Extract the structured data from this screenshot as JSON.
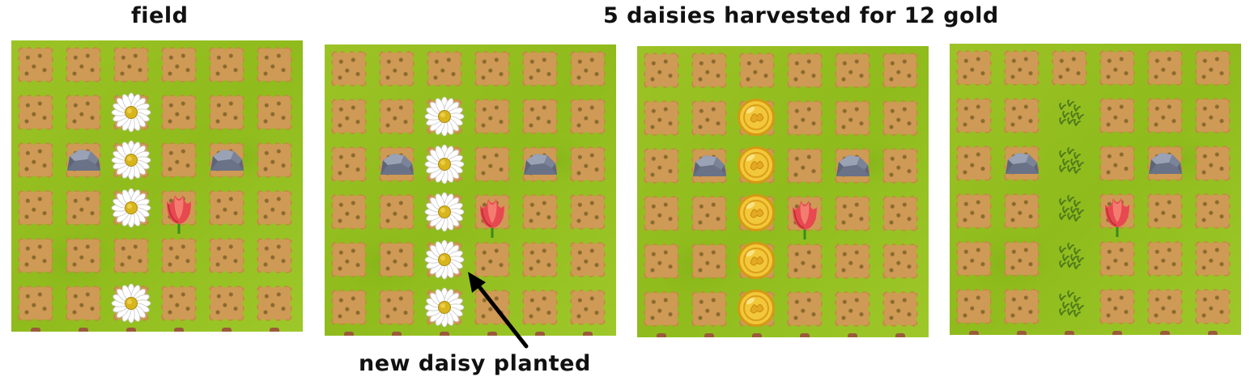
{
  "captions": {
    "field_title": "field",
    "harvest_title": "5 daisies harvested for 12 gold",
    "planted_note": "new daisy planted"
  },
  "grid": {
    "rows": 6,
    "cols": 6
  },
  "panels": [
    {
      "id": "panel-1",
      "items": [
        {
          "type": "daisy",
          "row": 1,
          "col": 2
        },
        {
          "type": "rock",
          "row": 2,
          "col": 1
        },
        {
          "type": "daisy",
          "row": 2,
          "col": 2
        },
        {
          "type": "rock",
          "row": 2,
          "col": 4
        },
        {
          "type": "daisy",
          "row": 3,
          "col": 2
        },
        {
          "type": "tulip",
          "row": 3,
          "col": 3
        },
        {
          "type": "daisy",
          "row": 5,
          "col": 2
        }
      ],
      "cleared": []
    },
    {
      "id": "panel-2",
      "items": [
        {
          "type": "daisy",
          "row": 1,
          "col": 2
        },
        {
          "type": "rock",
          "row": 2,
          "col": 1
        },
        {
          "type": "daisy",
          "row": 2,
          "col": 2
        },
        {
          "type": "rock",
          "row": 2,
          "col": 4
        },
        {
          "type": "daisy",
          "row": 3,
          "col": 2
        },
        {
          "type": "tulip",
          "row": 3,
          "col": 3
        },
        {
          "type": "daisy",
          "row": 4,
          "col": 2
        },
        {
          "type": "daisy",
          "row": 5,
          "col": 2
        }
      ],
      "cleared": []
    },
    {
      "id": "panel-3",
      "items": [
        {
          "type": "coin",
          "row": 1,
          "col": 2
        },
        {
          "type": "rock",
          "row": 2,
          "col": 1
        },
        {
          "type": "coin",
          "row": 2,
          "col": 2
        },
        {
          "type": "rock",
          "row": 2,
          "col": 4
        },
        {
          "type": "coin",
          "row": 3,
          "col": 2
        },
        {
          "type": "tulip",
          "row": 3,
          "col": 3
        },
        {
          "type": "coin",
          "row": 4,
          "col": 2
        },
        {
          "type": "coin",
          "row": 5,
          "col": 2
        }
      ],
      "cleared": []
    },
    {
      "id": "panel-4",
      "items": [
        {
          "type": "sprout",
          "row": 1,
          "col": 2
        },
        {
          "type": "rock",
          "row": 2,
          "col": 1
        },
        {
          "type": "sprout",
          "row": 2,
          "col": 2
        },
        {
          "type": "rock",
          "row": 2,
          "col": 4
        },
        {
          "type": "sprout",
          "row": 3,
          "col": 2
        },
        {
          "type": "tulip",
          "row": 3,
          "col": 3
        },
        {
          "type": "sprout",
          "row": 4,
          "col": 2
        },
        {
          "type": "sprout",
          "row": 5,
          "col": 2
        }
      ],
      "cleared": [
        [
          1,
          2
        ],
        [
          2,
          2
        ],
        [
          3,
          2
        ],
        [
          4,
          2
        ],
        [
          5,
          2
        ]
      ]
    }
  ],
  "colors": {
    "grass": "#9cc326",
    "soil": "#cf9a55",
    "coin": "#f1c232",
    "tulip": "#e8484f",
    "rock": "#6f7890"
  }
}
